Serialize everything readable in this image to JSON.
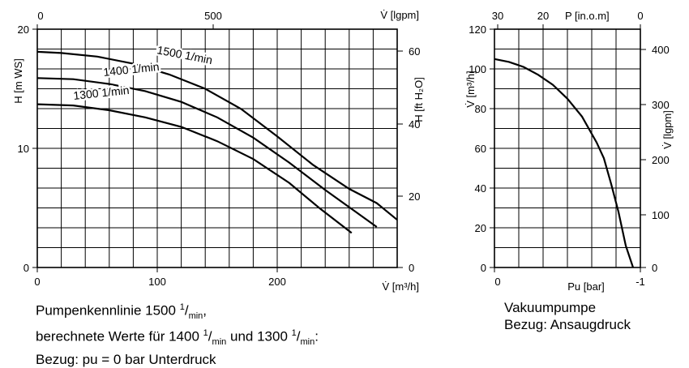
{
  "chart_data": [
    {
      "type": "line",
      "xlabel": "V̇ [m³/h]",
      "ylabel": "H [m WS]",
      "x_secondary_label": "V̇ [lgpm]",
      "y_secondary_label": "H [ft H₂O]",
      "xlim": [
        0,
        300
      ],
      "ylim": [
        0,
        20
      ],
      "x_ticks": [
        "0",
        "100",
        "200"
      ],
      "y_ticks": [
        "0",
        "10",
        "20"
      ],
      "x_secondary_ticks": [
        "0",
        "500"
      ],
      "y_secondary_ticks": [
        "0",
        "20",
        "40",
        "60"
      ],
      "grid": true,
      "series": [
        {
          "name": "1500 1/min",
          "x": [
            0,
            20,
            50,
            80,
            110,
            140,
            170,
            200,
            230,
            260,
            283,
            300
          ],
          "y": [
            18.1,
            18.0,
            17.7,
            17.1,
            16.2,
            15.0,
            13.3,
            11.0,
            8.6,
            6.6,
            5.4,
            4.0
          ]
        },
        {
          "name": "1400 1/min",
          "x": [
            0,
            30,
            60,
            90,
            120,
            150,
            180,
            210,
            240,
            265,
            283
          ],
          "y": [
            15.9,
            15.8,
            15.4,
            14.8,
            13.9,
            12.6,
            10.9,
            8.8,
            6.5,
            4.7,
            3.4
          ]
        },
        {
          "name": "1300 1/min",
          "x": [
            0,
            30,
            60,
            90,
            120,
            150,
            180,
            210,
            235,
            262
          ],
          "y": [
            13.7,
            13.6,
            13.2,
            12.6,
            11.8,
            10.6,
            9.1,
            7.1,
            5.0,
            2.9
          ]
        }
      ]
    },
    {
      "type": "line",
      "xlabel": "Pu [bar]",
      "ylabel": "V̇ [m³/h]",
      "x_secondary_label": "P [in.o.m]",
      "y_secondary_label": "V̇ [lgpm]",
      "xlim": [
        0,
        -1
      ],
      "ylim": [
        0,
        120
      ],
      "x_ticks": [
        "0",
        "-1"
      ],
      "y_ticks": [
        "0",
        "20",
        "40",
        "60",
        "80",
        "100",
        "120"
      ],
      "x_secondary_ticks": [
        "30",
        "20",
        "0"
      ],
      "y_secondary_ticks": [
        "0",
        "100",
        "200",
        "300",
        "400"
      ],
      "grid": true,
      "series": [
        {
          "name": "",
          "x": [
            0,
            -0.1,
            -0.2,
            -0.3,
            -0.4,
            -0.5,
            -0.6,
            -0.7,
            -0.75,
            -0.8,
            -0.85,
            -0.9,
            -0.95
          ],
          "y": [
            105,
            103.5,
            101,
            97,
            92,
            85,
            76,
            63,
            55,
            42,
            28,
            11,
            0
          ]
        }
      ]
    }
  ],
  "captions": {
    "pump_line1": "Pumpenkennlinie 1500",
    "pump_line2_a": "berechnete Werte für 1400",
    "pump_line2_b": "und 1300",
    "pump_line3": "Bezug: pu = 0 bar Unterdruck",
    "unit_num": "1",
    "unit_den": "min",
    "vac_line1": "Vakuumpumpe",
    "vac_line2": "Bezug: Ansaugdruck"
  }
}
